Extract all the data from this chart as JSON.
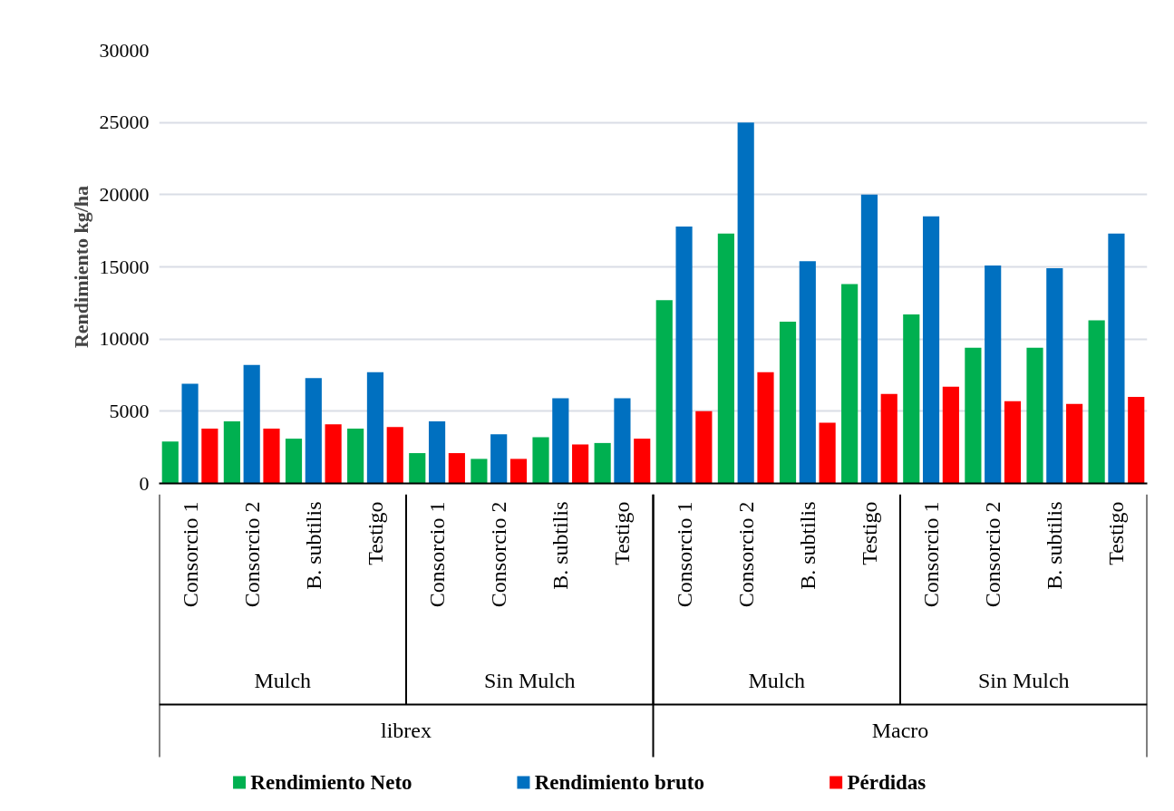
{
  "chart_data": {
    "type": "bar",
    "ylabel": "Rendimiento kg/ha",
    "categories": [
      "Consorcio 1",
      "Consorcio 2",
      "B. subtilis",
      "Testigo",
      "Consorcio 1",
      "Consorcio 2",
      "B. subtilis",
      "Testigo",
      "Consorcio 1",
      "Consorcio 2",
      "B. subtilis",
      "Testigo",
      "Consorcio 1",
      "Consorcio 2",
      "B. subtilis",
      "Testigo"
    ],
    "annotations": [
      "Mulch",
      "Sin Mulch",
      "Mulch",
      "Sin Mulch",
      "librex",
      "Macro"
    ],
    "series": [
      {
        "name": "Rendimiento Neto",
        "color": "#00b050",
        "values": [
          2900,
          4300,
          3100,
          3800,
          2100,
          1700,
          3200,
          2800,
          12700,
          17300,
          11200,
          13800,
          11700,
          9400,
          9400,
          11300
        ]
      },
      {
        "name": "Rendimiento bruto",
        "color": "#0070c0",
        "values": [
          6900,
          8200,
          7300,
          7700,
          4300,
          3400,
          5900,
          5900,
          17800,
          25000,
          15400,
          20000,
          18500,
          15100,
          14900,
          17300
        ]
      },
      {
        "name": "Pérdidas",
        "color": "#ff0000",
        "values": [
          3800,
          3800,
          4100,
          3900,
          2100,
          1700,
          2700,
          3100,
          5000,
          7700,
          4200,
          6200,
          6700,
          5700,
          5500,
          6000
        ]
      }
    ],
    "ylim": [
      0,
      30000
    ],
    "yticks": [
      0,
      5000,
      10000,
      15000,
      20000,
      25000,
      30000
    ],
    "grid": "y",
    "legend": "bottom"
  }
}
